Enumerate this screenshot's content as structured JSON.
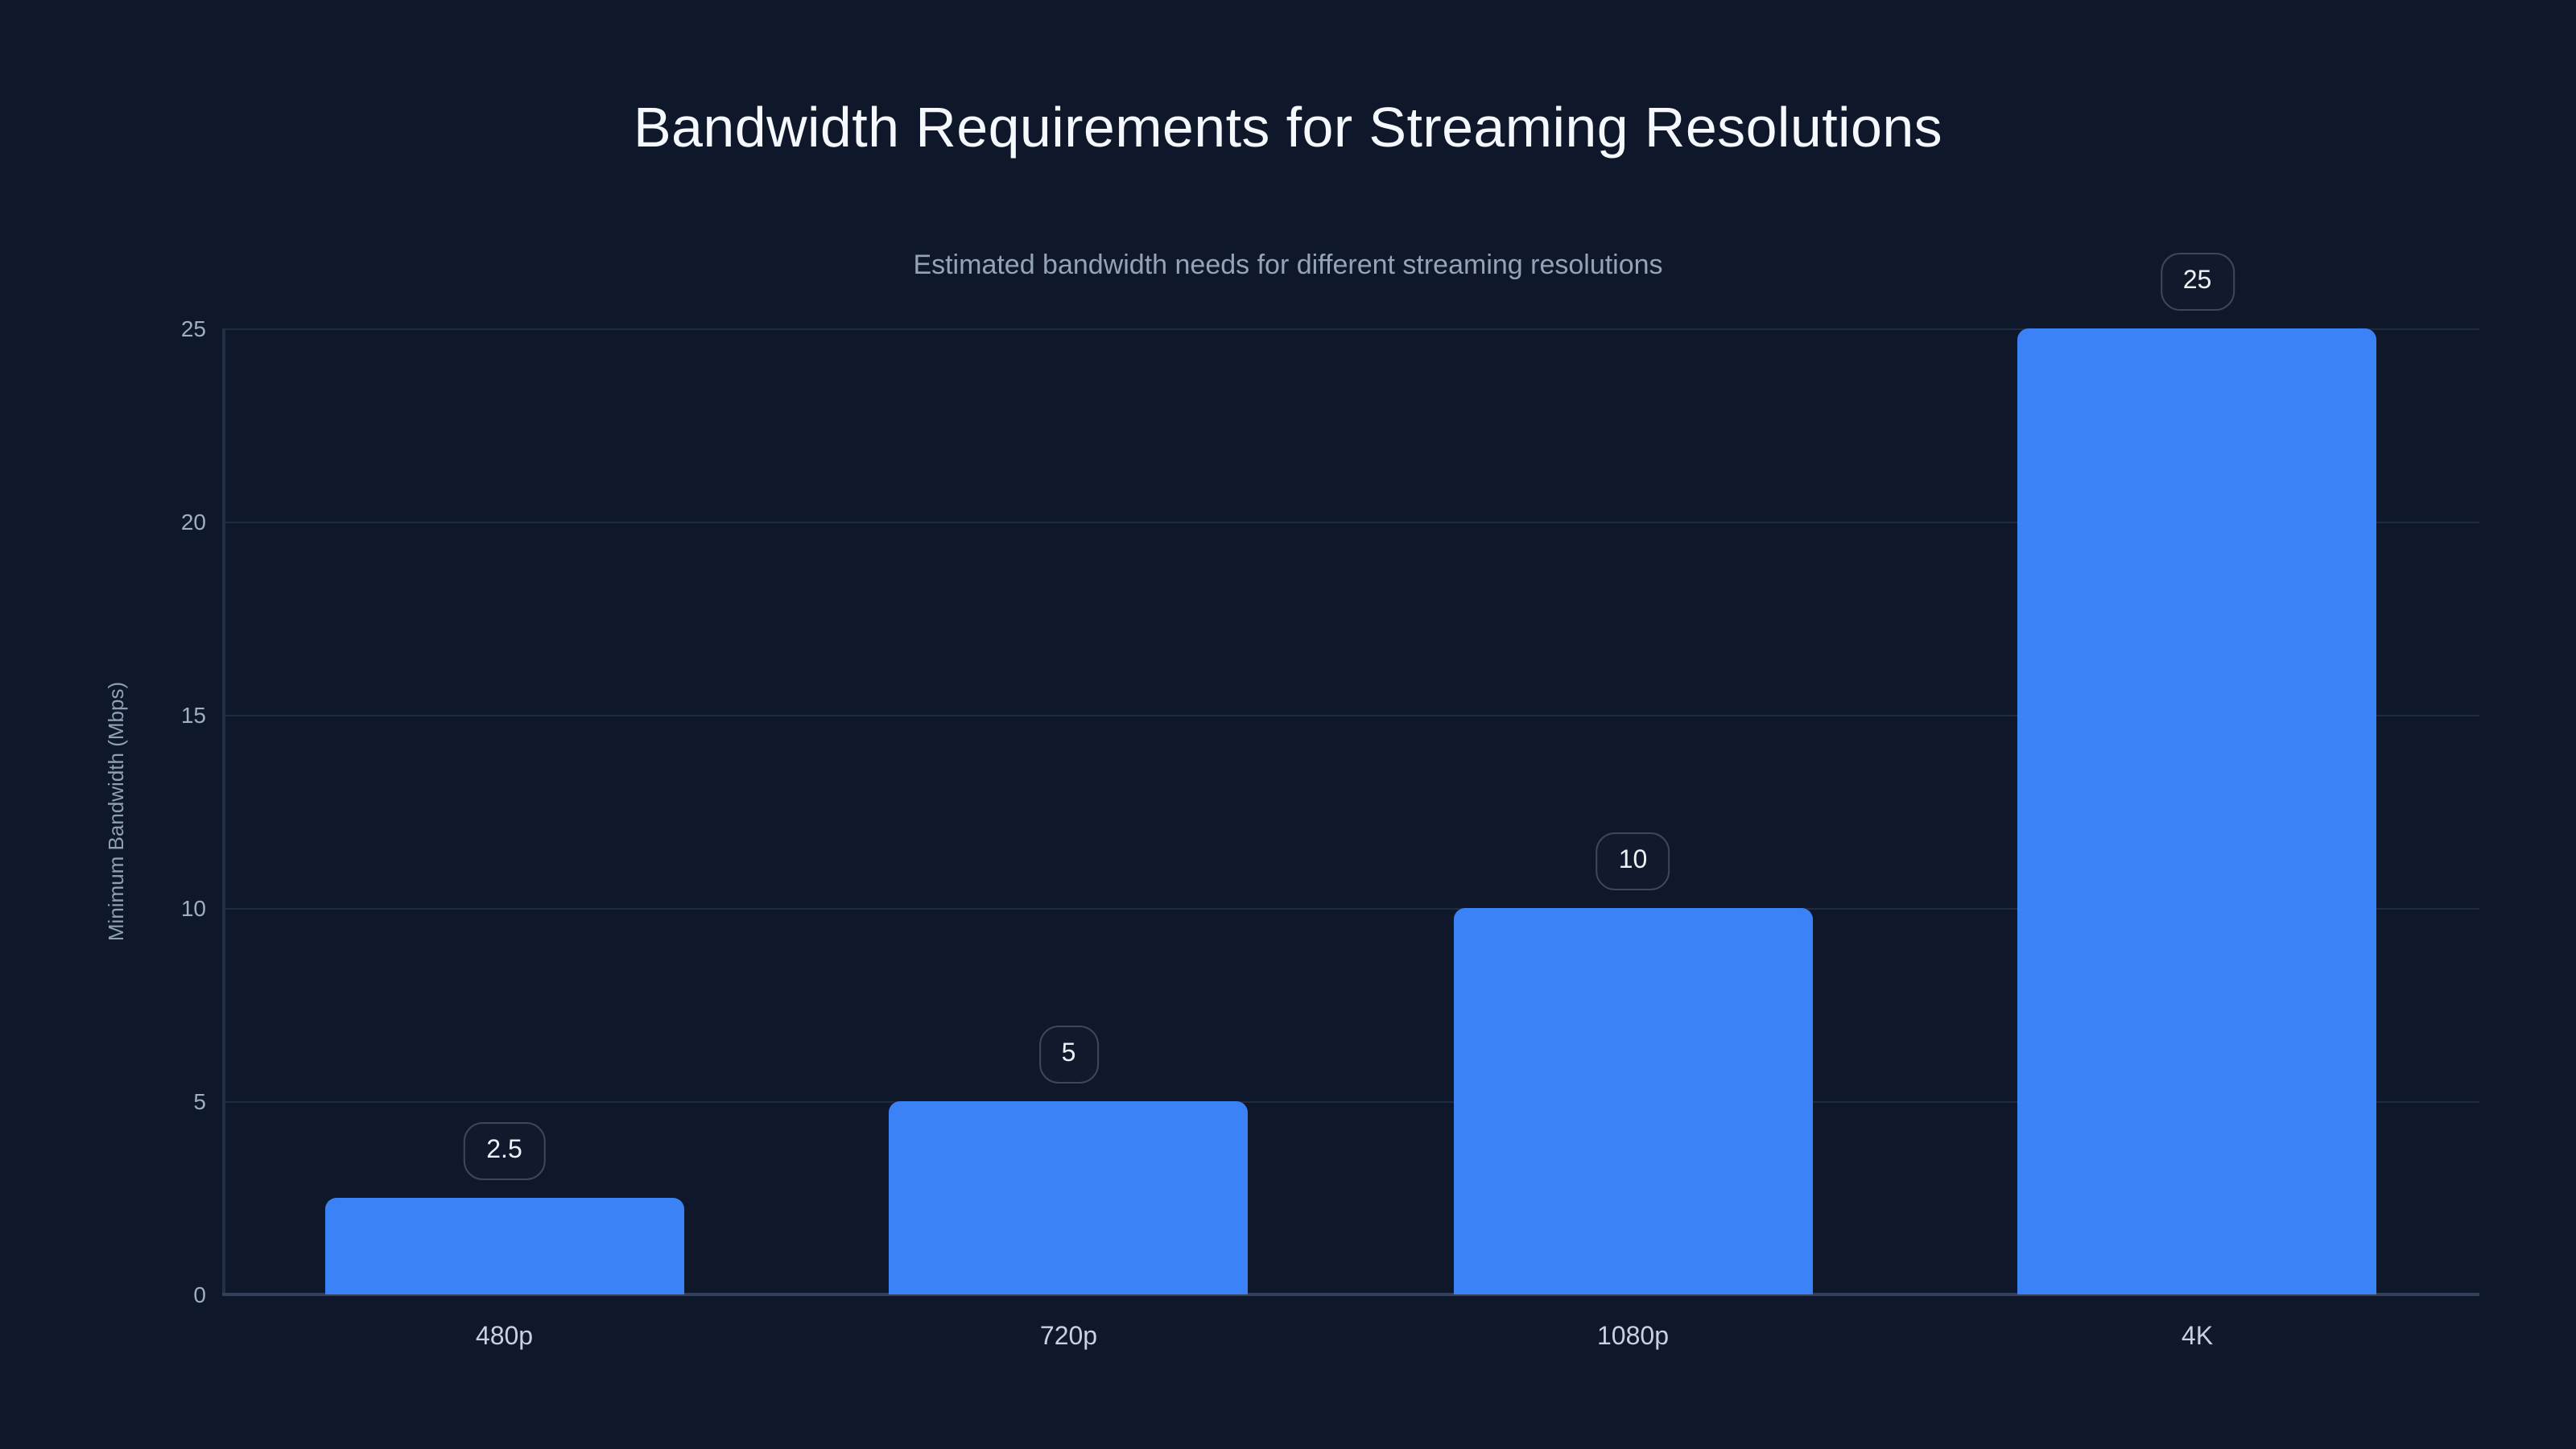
{
  "page": {
    "background_color": "#0f172a"
  },
  "chart_data": {
    "type": "bar",
    "title": "Bandwidth Requirements for Streaming Resolutions",
    "subtitle": "Estimated bandwidth needs for different streaming resolutions",
    "categories": [
      "480p",
      "720p",
      "1080p",
      "4K"
    ],
    "values": [
      2.5,
      5,
      10,
      25
    ],
    "value_labels": [
      "2.5",
      "5",
      "10",
      "25"
    ],
    "xlabel": "",
    "ylabel": "Minimum Bandwidth (Mbps)",
    "ylim": [
      0,
      25
    ],
    "yticks": [
      0,
      5,
      10,
      15,
      20,
      25
    ],
    "grid": "horizontal",
    "legend": "none",
    "bar_color": "#3b82f6",
    "colors": {
      "background": "#0f172a",
      "bar": "#3b82f6",
      "gridline": "#1f2b41",
      "axis_line": "#32405a",
      "title_text": "#f5f8fc",
      "subtitle_text": "#94a3b8",
      "tick_text": "#9fafc2",
      "category_text": "#c7d1e0",
      "badge_border": "#3c4859",
      "badge_background": "#111a2d",
      "badge_text": "#eef2f7"
    }
  }
}
